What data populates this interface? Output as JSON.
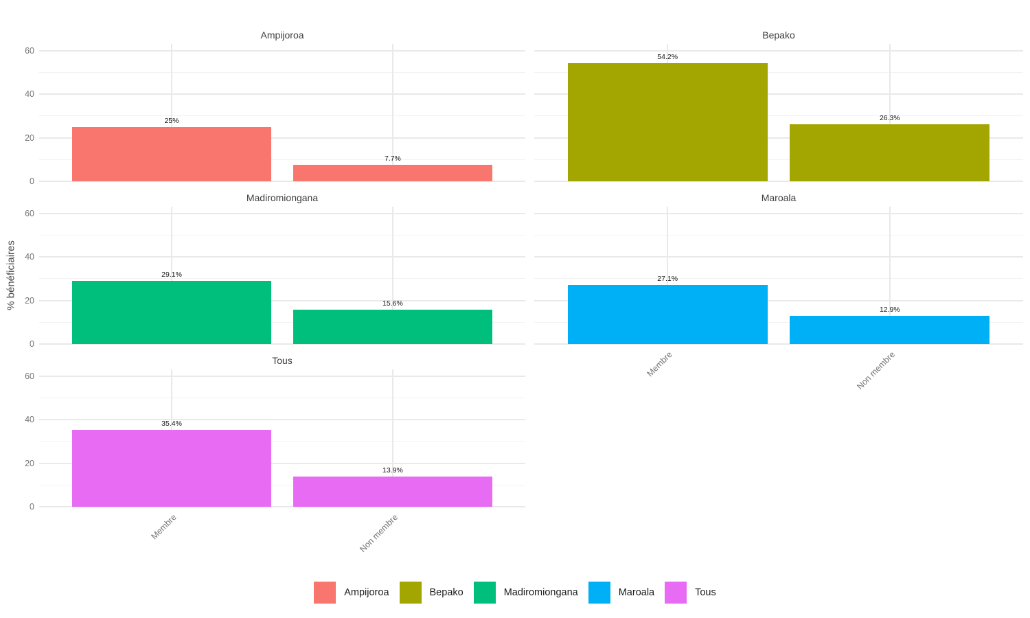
{
  "chart_data": {
    "type": "bar",
    "faceted": true,
    "title": "",
    "xlabel": "",
    "ylabel": "% bénéficiaires",
    "categories": [
      "Membre",
      "Non membre"
    ],
    "ylim": [
      0,
      63
    ],
    "yticks_major": [
      0,
      20,
      40,
      60
    ],
    "yticks_minor": [
      10,
      30,
      50
    ],
    "grid": "light gray major and minor horizontal lines, vertical major at category centers, white background",
    "legend_position": "bottom",
    "facets": [
      {
        "title": "Ampijoroa",
        "color": "#F8766D",
        "grid_pos": [
          0,
          0
        ],
        "values": [
          25,
          7.7
        ],
        "value_labels": [
          "25%",
          "7.7%"
        ]
      },
      {
        "title": "Bepako",
        "color": "#A3A500",
        "grid_pos": [
          0,
          1
        ],
        "values": [
          54.2,
          26.3
        ],
        "value_labels": [
          "54.2%",
          "26.3%"
        ]
      },
      {
        "title": "Madiromiongana",
        "color": "#00BF7D",
        "grid_pos": [
          1,
          0
        ],
        "values": [
          29.1,
          15.6
        ],
        "value_labels": [
          "29.1%",
          "15.6%"
        ]
      },
      {
        "title": "Maroala",
        "color": "#00B0F6",
        "grid_pos": [
          1,
          1
        ],
        "values": [
          27.1,
          12.9
        ],
        "value_labels": [
          "27.1%",
          "12.9%"
        ]
      },
      {
        "title": "Tous",
        "color": "#E76BF3",
        "grid_pos": [
          2,
          0
        ],
        "values": [
          35.4,
          13.9
        ],
        "value_labels": [
          "35.4%",
          "13.9%"
        ]
      }
    ],
    "legend": [
      {
        "label": "Ampijoroa",
        "color": "#F8766D"
      },
      {
        "label": "Bepako",
        "color": "#A3A500"
      },
      {
        "label": "Madiromiongana",
        "color": "#00BF7D"
      },
      {
        "label": "Maroala",
        "color": "#00B0F6"
      },
      {
        "label": "Tous",
        "color": "#E76BF3"
      }
    ]
  }
}
